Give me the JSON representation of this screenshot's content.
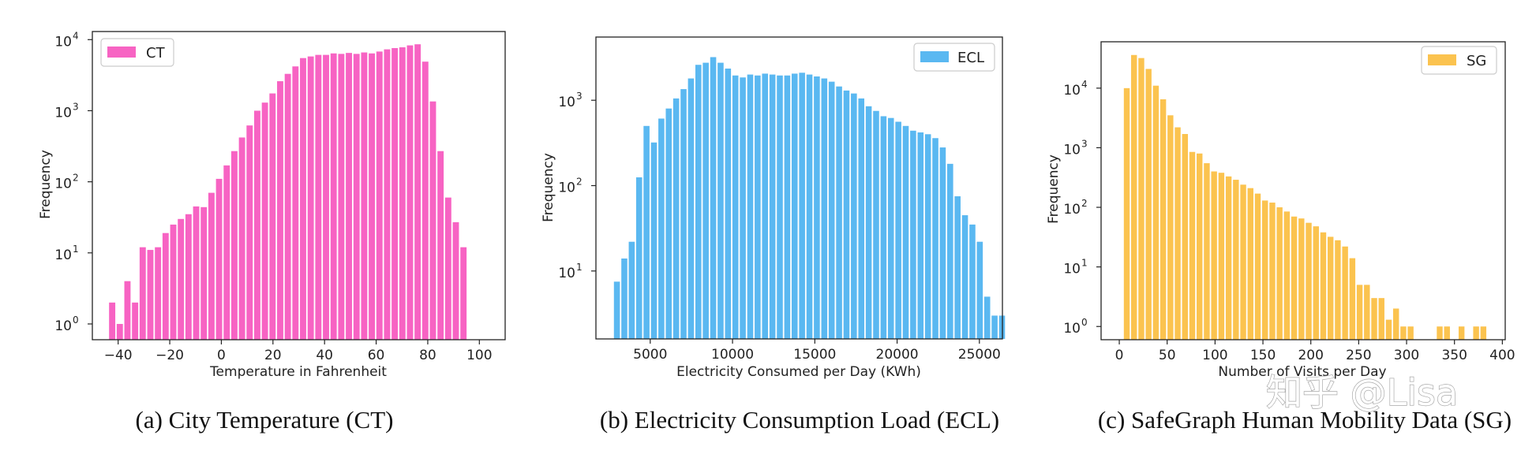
{
  "watermark": "知乎 @Lisa",
  "chart_data": [
    {
      "type": "bar",
      "id": "ct",
      "caption": "(a) City Temperature (CT)",
      "legend": "CT",
      "legend_position": "top-left",
      "color": "#f763c3",
      "xlabel": "Temperature in Fahrenheit",
      "ylabel": "Frequency",
      "yscale": "log",
      "xlim": [
        -50,
        110
      ],
      "ylim": [
        0.6,
        13000
      ],
      "xticks": [
        -40,
        -20,
        0,
        20,
        40,
        60,
        80,
        100
      ],
      "yticks": [
        {
          "value": 1,
          "base": "10",
          "exp": "0"
        },
        {
          "value": 10,
          "base": "10",
          "exp": "1"
        },
        {
          "value": 100,
          "base": "10",
          "exp": "2"
        },
        {
          "value": 1000,
          "base": "10",
          "exp": "3"
        },
        {
          "value": 10000,
          "base": "10",
          "exp": "4"
        }
      ],
      "bin_start": -43.8,
      "bin_width": 2.96,
      "values": [
        2,
        1,
        4,
        2,
        12,
        11,
        12,
        19,
        25,
        30,
        35,
        45,
        44,
        70,
        110,
        170,
        270,
        420,
        620,
        1000,
        1300,
        1750,
        2600,
        3300,
        4200,
        5500,
        5800,
        6100,
        6100,
        6400,
        6300,
        6500,
        6300,
        6600,
        6400,
        6800,
        7300,
        7600,
        7800,
        8300,
        8600,
        4900,
        1350,
        270,
        60,
        27,
        12
      ]
    },
    {
      "type": "bar",
      "id": "ecl",
      "caption": "(b) Electricity Consumption Load (ECL)",
      "legend": "ECL",
      "legend_position": "top-right",
      "color": "#5ab8f1",
      "xlabel": "Electricity Consumed per Day (KWh)",
      "ylabel": "Frequency",
      "yscale": "log",
      "xlim": [
        1700,
        26400
      ],
      "ylim": [
        1.6,
        5500
      ],
      "xticks": [
        5000,
        10000,
        15000,
        20000,
        25000
      ],
      "yticks": [
        {
          "value": 10,
          "base": "10",
          "exp": "1"
        },
        {
          "value": 100,
          "base": "10",
          "exp": "2"
        },
        {
          "value": 1000,
          "base": "10",
          "exp": "3"
        }
      ],
      "bin_start": 2750,
      "bin_width": 450,
      "values": [
        7.5,
        14,
        22,
        125,
        500,
        320,
        610,
        800,
        1050,
        1350,
        1800,
        2600,
        2750,
        3200,
        2750,
        2350,
        1950,
        1850,
        2000,
        1950,
        2050,
        2000,
        1950,
        1950,
        2050,
        2100,
        2000,
        1900,
        1800,
        1650,
        1450,
        1300,
        1200,
        1050,
        850,
        750,
        650,
        620,
        560,
        500,
        440,
        420,
        400,
        360,
        280,
        180,
        75,
        45,
        35,
        22,
        5,
        3,
        3
      ]
    },
    {
      "type": "bar",
      "id": "sg",
      "caption": "(c) SafeGraph Human Mobility Data (SG)",
      "legend": "SG",
      "legend_position": "top-right",
      "color": "#fbc34f",
      "xlabel": "Number of Visits per Day",
      "ylabel": "Frequency",
      "yscale": "log",
      "xlim": [
        -19,
        403
      ],
      "ylim": [
        0.6,
        60000
      ],
      "xticks": [
        0,
        50,
        100,
        150,
        200,
        250,
        300,
        350,
        400
      ],
      "yticks": [
        {
          "value": 1,
          "base": "10",
          "exp": "0"
        },
        {
          "value": 10,
          "base": "10",
          "exp": "1"
        },
        {
          "value": 100,
          "base": "10",
          "exp": "2"
        },
        {
          "value": 1000,
          "base": "10",
          "exp": "3"
        },
        {
          "value": 10000,
          "base": "10",
          "exp": "4"
        }
      ],
      "bin_start": 4,
      "bin_width": 7.6,
      "values": [
        10000,
        36000,
        32000,
        21000,
        11000,
        6500,
        3500,
        2200,
        1700,
        850,
        800,
        550,
        400,
        380,
        330,
        290,
        240,
        210,
        170,
        130,
        120,
        100,
        85,
        70,
        65,
        55,
        48,
        38,
        32,
        28,
        22,
        14,
        5,
        5,
        3,
        3,
        1.3,
        2,
        1,
        1,
        0,
        0,
        0,
        1,
        1,
        0,
        1,
        0,
        1,
        1
      ]
    }
  ]
}
